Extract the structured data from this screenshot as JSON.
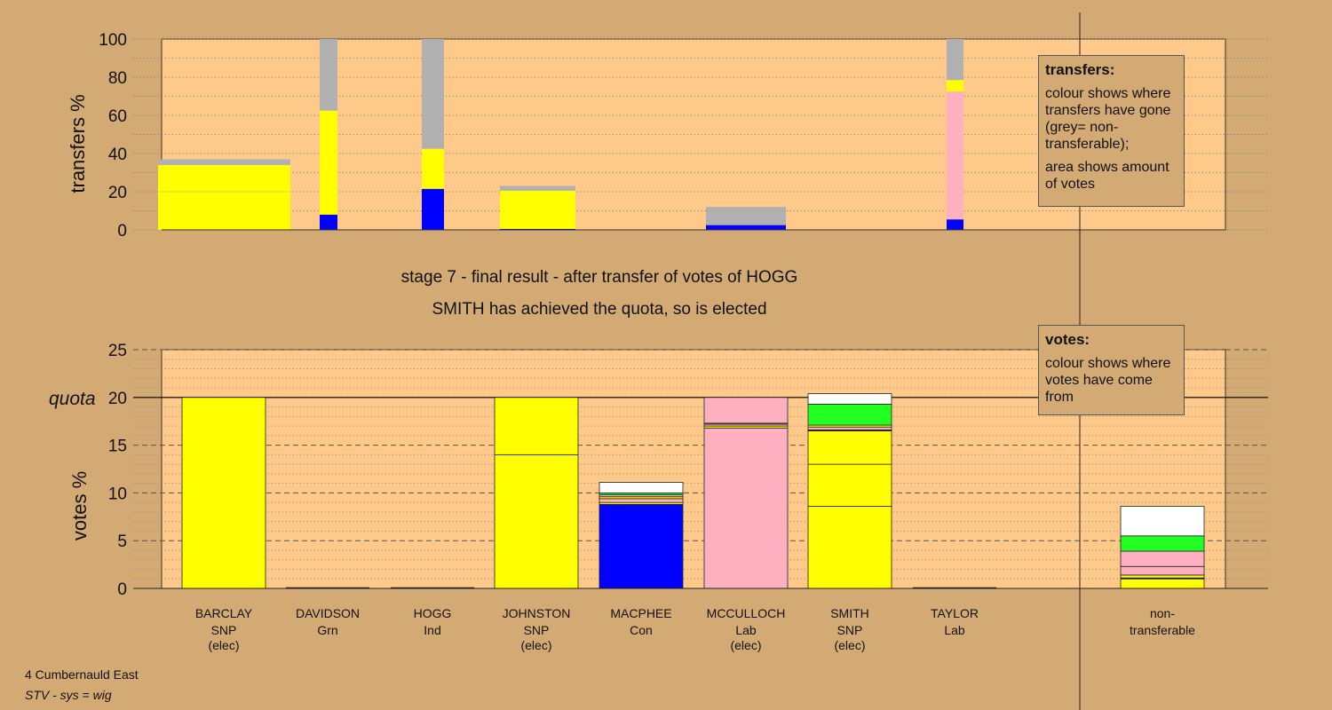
{
  "colors": {
    "background": "#d4aa74",
    "plot_bg": "#ffc98a",
    "snp": "#ffff00",
    "con": "#0000ff",
    "lab": "#ffb0c0",
    "grn": "#22ff22",
    "other": "#ffffff",
    "non_transferable": "#b0b0b0"
  },
  "header": {
    "stage": "stage 7 - final result - after transfer of votes of HOGG",
    "status": "SMITH has achieved the quota, so is elected"
  },
  "legend_transfers": {
    "title": "transfers:",
    "line1": "colour shows where transfers have gone (grey= non-transferable);",
    "line2": "area shows amount of votes"
  },
  "legend_votes": {
    "title": "votes:",
    "line1": "colour shows where votes have come from"
  },
  "footer": {
    "ward": "4 Cumbernauld East",
    "system": "STV - sys = wig"
  },
  "chart_data": [
    {
      "type": "bar",
      "title": "",
      "ylabel": "transfers %",
      "ylim": [
        0,
        100
      ],
      "yticks": [
        0,
        20,
        40,
        60,
        80,
        100
      ],
      "grid": true,
      "bars": [
        {
          "candidate": "BARCLAY",
          "segments": [
            {
              "party": "snp",
              "value": 20
            },
            {
              "party": "snp",
              "value": 14
            },
            {
              "party": "non_transferable",
              "value": 3
            }
          ]
        },
        {
          "candidate": "DAVIDSON",
          "segments": [
            {
              "party": "con",
              "value": 8
            },
            {
              "party": "snp",
              "value": 54.5
            },
            {
              "party": "non_transferable",
              "value": 37.5
            }
          ]
        },
        {
          "candidate": "HOGG",
          "segments": [
            {
              "party": "con",
              "value": 21.5
            },
            {
              "party": "snp",
              "value": 21
            },
            {
              "party": "non_transferable",
              "value": 57.5
            }
          ]
        },
        {
          "candidate": "JOHNSTON",
          "segments": [
            {
              "party": "con",
              "value": 0.5
            },
            {
              "party": "snp",
              "value": 20
            },
            {
              "party": "non_transferable",
              "value": 2.5
            }
          ]
        },
        {
          "candidate": "MACPHEE",
          "segments": []
        },
        {
          "candidate": "MCCULLOCH",
          "segments": [
            {
              "party": "con",
              "value": 2.5
            },
            {
              "party": "non_transferable",
              "value": 9.5
            }
          ]
        },
        {
          "candidate": "SMITH",
          "segments": []
        },
        {
          "candidate": "TAYLOR",
          "segments": [
            {
              "party": "con",
              "value": 5.5
            },
            {
              "party": "lab",
              "value": 67
            },
            {
              "party": "snp",
              "value": 6
            },
            {
              "party": "non_transferable",
              "value": 21.5
            }
          ]
        }
      ]
    },
    {
      "type": "bar",
      "title": "",
      "ylabel": "votes %",
      "quota_label": "quota",
      "quota": 20,
      "ylim": [
        0,
        25
      ],
      "yticks": [
        0,
        5,
        10,
        15,
        20,
        25
      ],
      "grid": true,
      "categories": [
        {
          "name": "BARCLAY",
          "party": "SNP",
          "status": "(elec)"
        },
        {
          "name": "DAVIDSON",
          "party": "Grn",
          "status": ""
        },
        {
          "name": "HOGG",
          "party": "Ind",
          "status": ""
        },
        {
          "name": "JOHNSTON",
          "party": "SNP",
          "status": "(elec)"
        },
        {
          "name": "MACPHEE",
          "party": "Con",
          "status": ""
        },
        {
          "name": "MCCULLOCH",
          "party": "Lab",
          "status": "(elec)"
        },
        {
          "name": "SMITH",
          "party": "SNP",
          "status": "(elec)"
        },
        {
          "name": "TAYLOR",
          "party": "Lab",
          "status": ""
        },
        {
          "name": "non-",
          "party": "transferable",
          "status": ""
        }
      ],
      "bars": [
        {
          "candidate": "BARCLAY",
          "segments": [
            {
              "party": "snp",
              "value": 20
            }
          ]
        },
        {
          "candidate": "DAVIDSON",
          "segments": []
        },
        {
          "candidate": "HOGG",
          "segments": []
        },
        {
          "candidate": "JOHNSTON",
          "segments": [
            {
              "party": "snp",
              "value": 14
            },
            {
              "party": "snp",
              "value": 6
            }
          ]
        },
        {
          "candidate": "MACPHEE",
          "segments": [
            {
              "party": "con",
              "value": 8.8
            },
            {
              "party": "snp",
              "value": 0.2
            },
            {
              "party": "lab",
              "value": 0.4
            },
            {
              "party": "snp",
              "value": 0.2
            },
            {
              "party": "lab",
              "value": 0.2
            },
            {
              "party": "grn",
              "value": 0.2
            },
            {
              "party": "other",
              "value": 1.1
            }
          ]
        },
        {
          "candidate": "MCCULLOCH",
          "segments": [
            {
              "party": "lab",
              "value": 16.8
            },
            {
              "party": "snp",
              "value": 0.2
            },
            {
              "party": "lab",
              "value": 0.2
            },
            {
              "party": "snp",
              "value": 0.1
            },
            {
              "party": "lab",
              "value": 2.7
            }
          ]
        },
        {
          "candidate": "SMITH",
          "segments": [
            {
              "party": "snp",
              "value": 8.6
            },
            {
              "party": "snp",
              "value": 4.4
            },
            {
              "party": "snp",
              "value": 3.5
            },
            {
              "party": "con",
              "value": 0.1
            },
            {
              "party": "lab",
              "value": 0.3
            },
            {
              "party": "snp",
              "value": 0.2
            },
            {
              "party": "grn",
              "value": 2.2
            },
            {
              "party": "other",
              "value": 1.1
            }
          ]
        },
        {
          "candidate": "TAYLOR",
          "segments": []
        },
        {
          "candidate": "non-transferable",
          "segments": [
            {
              "party": "snp",
              "value": 1
            },
            {
              "party": "con",
              "value": 0.1
            },
            {
              "party": "snp",
              "value": 0.3
            },
            {
              "party": "lab",
              "value": 0.9
            },
            {
              "party": "lab",
              "value": 1.6
            },
            {
              "party": "grn",
              "value": 1.6
            },
            {
              "party": "other",
              "value": 3.1
            }
          ]
        }
      ]
    }
  ]
}
